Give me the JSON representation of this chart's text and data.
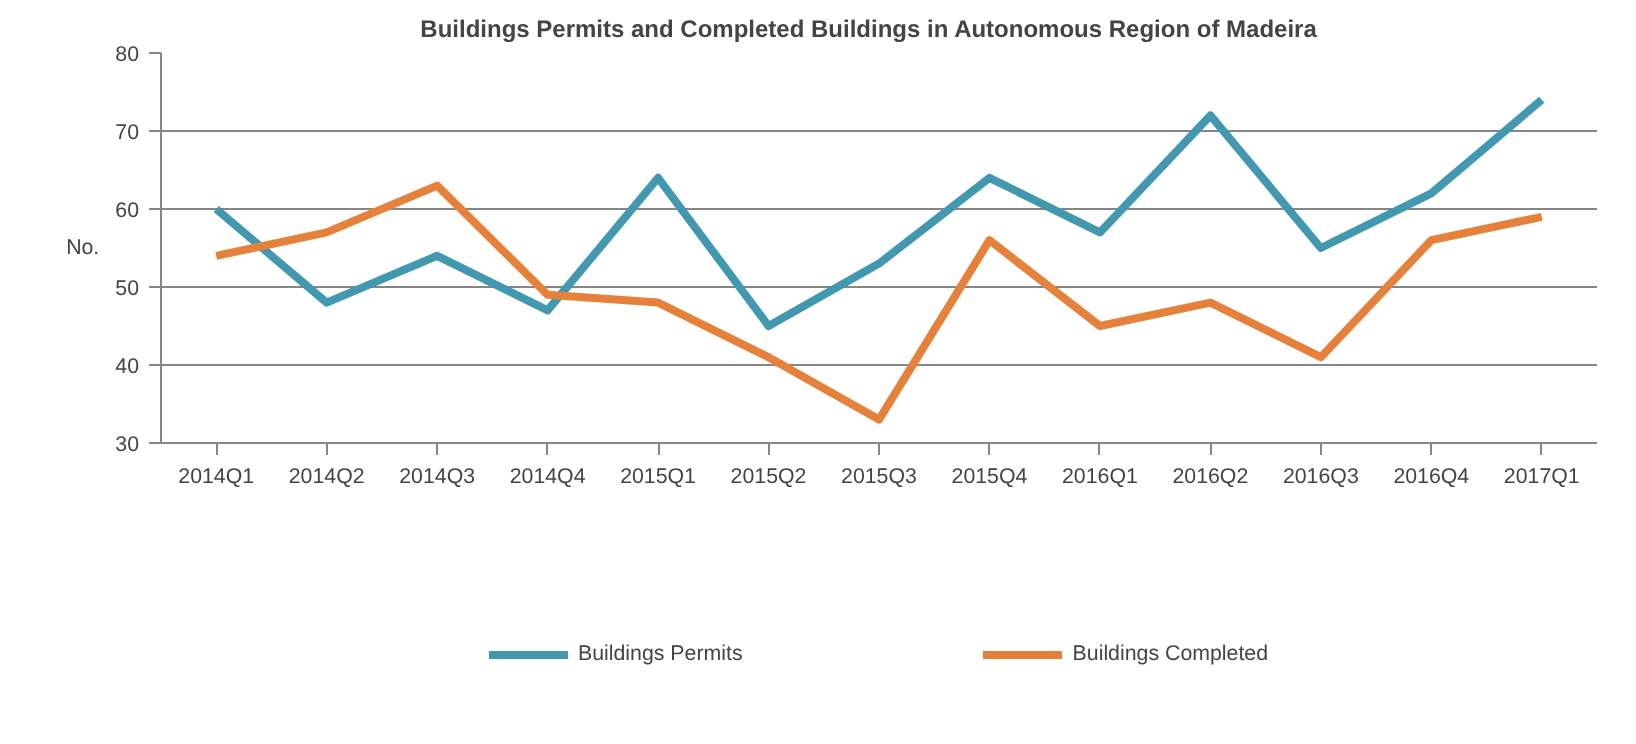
{
  "chart_data": {
    "type": "line",
    "title": "Buildings  Permits and Completed Buildings  in Autonomous  Region of Madeira",
    "ylabel": "No.",
    "categories": [
      "2014Q1",
      "2014Q2",
      "2014Q3",
      "2014Q4",
      "2015Q1",
      "2015Q2",
      "2015Q3",
      "2015Q4",
      "2016Q1",
      "2016Q2",
      "2016Q3",
      "2016Q4",
      "2017Q1"
    ],
    "series": [
      {
        "name": "Buildings Permits",
        "color": "#4198af",
        "values": [
          60,
          48,
          54,
          47,
          64,
          45,
          53,
          64,
          57,
          72,
          55,
          62,
          74
        ]
      },
      {
        "name": "Buildings Completed",
        "color": "#e5813a",
        "values": [
          54,
          57,
          63,
          49,
          48,
          41,
          33,
          56,
          45,
          48,
          41,
          56,
          59
        ]
      }
    ],
    "ylim": [
      30,
      80
    ],
    "yticks": [
      30,
      40,
      50,
      60,
      70,
      80
    ],
    "grid": "y",
    "legend": "bottom",
    "marker": "none",
    "line_style": "solid"
  }
}
